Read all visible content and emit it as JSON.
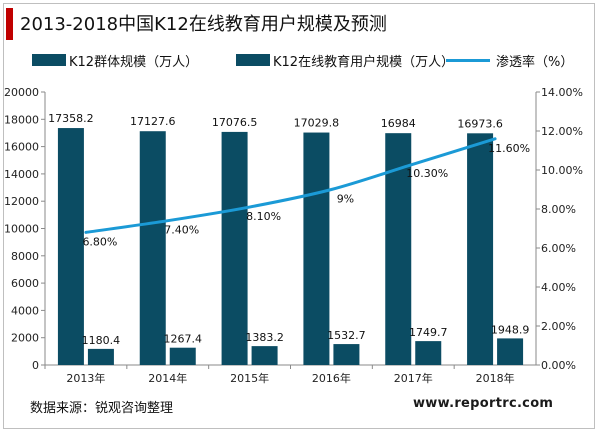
{
  "title": "2013-2018中国K12在线教育用户规模及预测",
  "source": "数据来源：锐观咨询整理",
  "website": "www.reportrc.com",
  "colors": {
    "accent": "#c00000",
    "bar": "#0b4c63",
    "line": "#1b9ad6"
  },
  "chart_data": {
    "type": "bar+line",
    "categories": [
      "2013年",
      "2014年",
      "2015年",
      "2016年",
      "2017年",
      "2018年"
    ],
    "series": [
      {
        "name": "K12群体规模（万人）",
        "type": "bar",
        "axis": "left",
        "values": [
          17358.2,
          17127.6,
          17076.5,
          17029.8,
          16984,
          16973.6
        ],
        "labels": [
          "17358.2",
          "17127.6",
          "17076.5",
          "17029.8",
          "16984",
          "16973.6"
        ]
      },
      {
        "name": "K12在线教育用户规模（万人）",
        "type": "bar",
        "axis": "left",
        "values": [
          1180.4,
          1267.4,
          1383.2,
          1532.7,
          1749.7,
          1948.9
        ],
        "labels": [
          "1180.4",
          "1267.4",
          "1383.2",
          "1532.7",
          "1749.7",
          "1948.9"
        ]
      },
      {
        "name": "渗透率（%）",
        "type": "line",
        "axis": "right",
        "values": [
          6.8,
          7.4,
          8.1,
          9.0,
          10.3,
          11.6
        ],
        "labels": [
          "6.80%",
          "7.40%",
          "8.10%",
          "9%",
          "10.30%",
          "11.60%"
        ]
      }
    ],
    "y_left": {
      "min": 0,
      "max": 20000,
      "ticks": [
        "0",
        "2000",
        "4000",
        "6000",
        "8000",
        "10000",
        "12000",
        "14000",
        "16000",
        "18000",
        "20000"
      ]
    },
    "y_right": {
      "min": 0,
      "max": 14,
      "ticks": [
        "0.00%",
        "2.00%",
        "4.00%",
        "6.00%",
        "8.00%",
        "10.00%",
        "12.00%",
        "14.00%"
      ]
    },
    "grid": false,
    "legend": "top"
  }
}
